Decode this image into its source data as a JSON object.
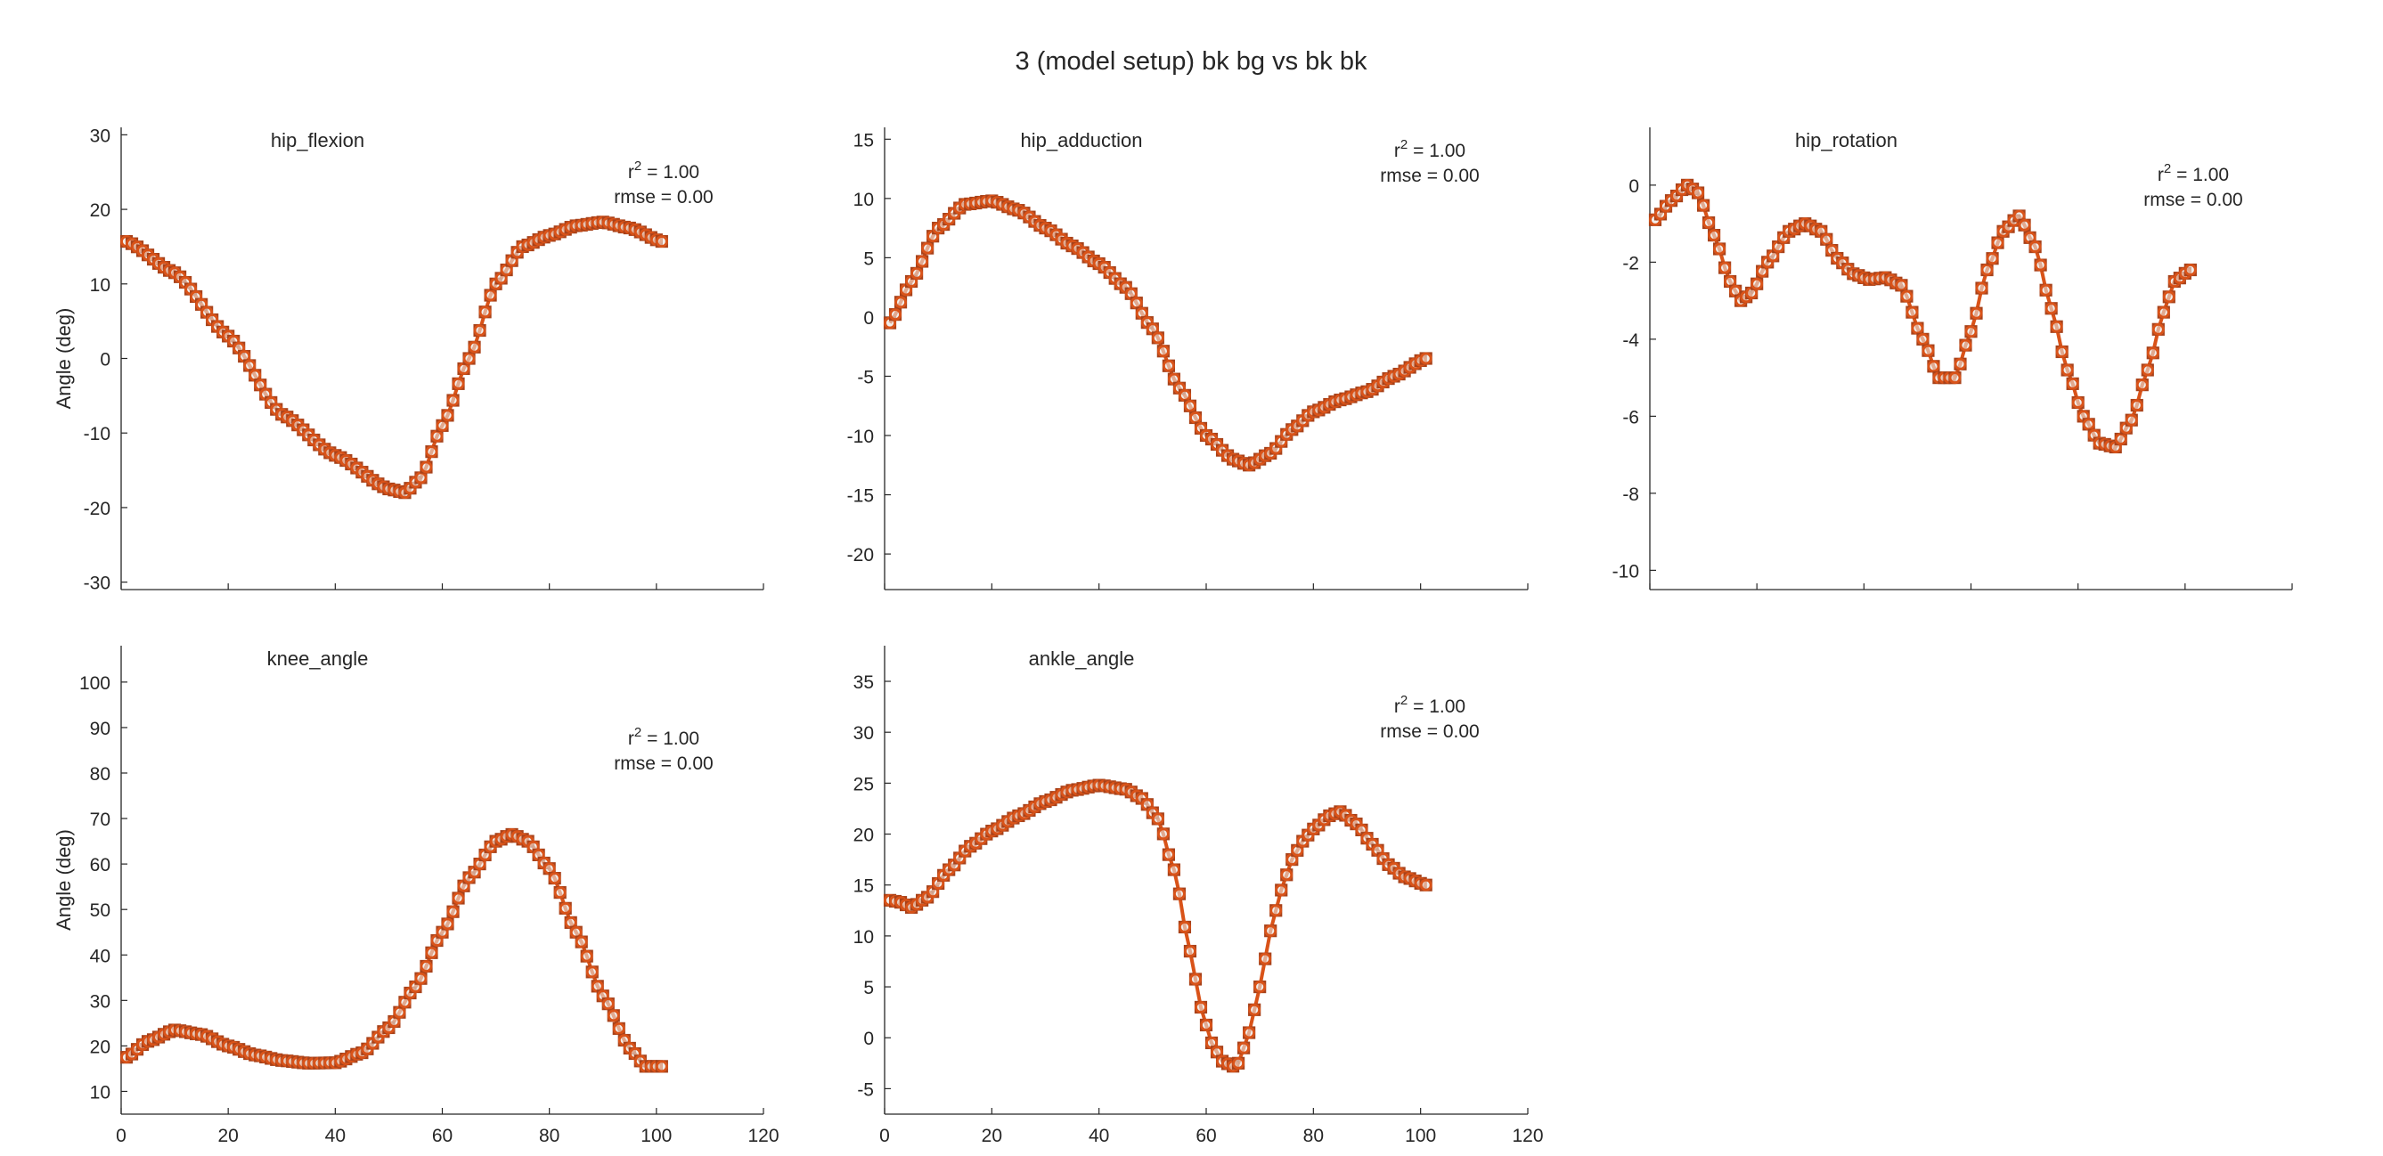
{
  "figure": {
    "title": "3 (model setup) bk bg vs bk bk"
  },
  "colors": {
    "line": "#D95319",
    "marker_edge": "#A8421A",
    "marker_face": "#E8E2DE",
    "axis": "#262626"
  },
  "chart_data": [
    {
      "type": "line",
      "name": "hip_flexion",
      "title": "hip_flexion",
      "ylabel": "Angle (deg)",
      "xlim": [
        0,
        120
      ],
      "ylim": [
        -31,
        31
      ],
      "yticks": [
        -30,
        -20,
        -10,
        0,
        10,
        20,
        30
      ],
      "xticks": [
        0,
        20,
        40,
        60,
        80,
        100,
        120
      ],
      "show_x_tick_labels": false,
      "stats": {
        "r2_label": "r",
        "r2_sup": "2",
        "r2_value": " = 1.00",
        "rmse": "rmse = 0.00"
      },
      "keypoints": [
        [
          1,
          15.7
        ],
        [
          10,
          11.5
        ],
        [
          20,
          3
        ],
        [
          30,
          -7.5
        ],
        [
          40,
          -13
        ],
        [
          50,
          -17.5
        ],
        [
          53,
          -18
        ],
        [
          56,
          -16
        ],
        [
          60,
          -9
        ],
        [
          65,
          0
        ],
        [
          70,
          10
        ],
        [
          75,
          15
        ],
        [
          80,
          16.5
        ],
        [
          85,
          17.8
        ],
        [
          90,
          18.3
        ],
        [
          95,
          17.5
        ],
        [
          101,
          15.7
        ]
      ]
    },
    {
      "type": "line",
      "name": "hip_adduction",
      "title": "hip_adduction",
      "ylabel": "",
      "xlim": [
        0,
        120
      ],
      "ylim": [
        -23,
        16
      ],
      "yticks": [
        -20,
        -15,
        -10,
        -5,
        0,
        5,
        10,
        15
      ],
      "xticks": [
        0,
        20,
        40,
        60,
        80,
        100,
        120
      ],
      "show_x_tick_labels": false,
      "stats": {
        "r2_label": "r",
        "r2_sup": "2",
        "r2_value": " = 1.00",
        "rmse": "rmse = 0.00"
      },
      "keypoints": [
        [
          1,
          -0.5
        ],
        [
          5,
          3
        ],
        [
          10,
          7.5
        ],
        [
          15,
          9.5
        ],
        [
          20,
          9.8
        ],
        [
          25,
          9
        ],
        [
          30,
          7.5
        ],
        [
          35,
          6
        ],
        [
          40,
          4.5
        ],
        [
          45,
          2.5
        ],
        [
          50,
          -1
        ],
        [
          55,
          -6
        ],
        [
          60,
          -10
        ],
        [
          65,
          -12
        ],
        [
          68,
          -12.5
        ],
        [
          72,
          -11.5
        ],
        [
          76,
          -9.5
        ],
        [
          80,
          -8
        ],
        [
          85,
          -7
        ],
        [
          90,
          -6.3
        ],
        [
          95,
          -5
        ],
        [
          101,
          -3.5
        ]
      ]
    },
    {
      "type": "line",
      "name": "hip_rotation",
      "title": "hip_rotation",
      "ylabel": "",
      "xlim": [
        0,
        120
      ],
      "ylim": [
        -10.5,
        1.5
      ],
      "yticks": [
        -10,
        -8,
        -6,
        -4,
        -2,
        0
      ],
      "xticks": [
        0,
        20,
        40,
        60,
        80,
        100,
        120
      ],
      "show_x_tick_labels": false,
      "stats": {
        "r2_label": "r",
        "r2_sup": "2",
        "r2_value": " = 1.00",
        "rmse": "rmse = 0.00"
      },
      "keypoints": [
        [
          1,
          -0.9
        ],
        [
          4,
          -0.4
        ],
        [
          7,
          0
        ],
        [
          9,
          -0.2
        ],
        [
          12,
          -1.3
        ],
        [
          15,
          -2.5
        ],
        [
          17,
          -3
        ],
        [
          19,
          -2.8
        ],
        [
          22,
          -2
        ],
        [
          26,
          -1.2
        ],
        [
          29,
          -1
        ],
        [
          32,
          -1.2
        ],
        [
          35,
          -1.9
        ],
        [
          38,
          -2.3
        ],
        [
          41,
          -2.45
        ],
        [
          44,
          -2.4
        ],
        [
          47,
          -2.6
        ],
        [
          51,
          -4
        ],
        [
          54,
          -5
        ],
        [
          57,
          -5
        ],
        [
          60,
          -3.8
        ],
        [
          63,
          -2.2
        ],
        [
          66,
          -1.2
        ],
        [
          69,
          -0.8
        ],
        [
          72,
          -1.6
        ],
        [
          75,
          -3.2
        ],
        [
          78,
          -4.8
        ],
        [
          81,
          -6
        ],
        [
          84,
          -6.7
        ],
        [
          87,
          -6.8
        ],
        [
          90,
          -6.1
        ],
        [
          93,
          -4.8
        ],
        [
          96,
          -3.3
        ],
        [
          98,
          -2.5
        ],
        [
          101,
          -2.2
        ]
      ]
    },
    {
      "type": "line",
      "name": "knee_angle",
      "title": "knee_angle",
      "ylabel": "Angle (deg)",
      "xlim": [
        0,
        120
      ],
      "ylim": [
        5,
        108
      ],
      "yticks": [
        10,
        20,
        30,
        40,
        50,
        60,
        70,
        80,
        90,
        100
      ],
      "xticks": [
        0,
        20,
        40,
        60,
        80,
        100,
        120
      ],
      "show_x_tick_labels": true,
      "stats": {
        "r2_label": "r",
        "r2_sup": "2",
        "r2_value": " = 1.00",
        "rmse": "rmse = 0.00"
      },
      "keypoints": [
        [
          1,
          17.5
        ],
        [
          5,
          21
        ],
        [
          10,
          23.5
        ],
        [
          15,
          22.5
        ],
        [
          20,
          20
        ],
        [
          25,
          18
        ],
        [
          30,
          16.8
        ],
        [
          35,
          16.2
        ],
        [
          40,
          16.3
        ],
        [
          45,
          18.5
        ],
        [
          50,
          24
        ],
        [
          55,
          33
        ],
        [
          60,
          45
        ],
        [
          65,
          57
        ],
        [
          70,
          65
        ],
        [
          73,
          66.5
        ],
        [
          76,
          65
        ],
        [
          80,
          59
        ],
        [
          85,
          45
        ],
        [
          90,
          31
        ],
        [
          95,
          19.5
        ],
        [
          98,
          15.5
        ],
        [
          101,
          15.5
        ]
      ]
    },
    {
      "type": "line",
      "name": "ankle_angle",
      "title": "ankle_angle",
      "ylabel": "",
      "xlim": [
        0,
        120
      ],
      "ylim": [
        -7.5,
        38.5
      ],
      "yticks": [
        -5,
        0,
        5,
        10,
        15,
        20,
        25,
        30,
        35
      ],
      "xticks": [
        0,
        20,
        40,
        60,
        80,
        100,
        120
      ],
      "show_x_tick_labels": true,
      "stats": {
        "r2_label": "r",
        "r2_sup": "2",
        "r2_value": " = 1.00",
        "rmse": "rmse = 0.00"
      },
      "keypoints": [
        [
          1,
          13.5
        ],
        [
          3,
          13.3
        ],
        [
          5,
          12.8
        ],
        [
          8,
          13.8
        ],
        [
          12,
          16.5
        ],
        [
          16,
          18.8
        ],
        [
          20,
          20.3
        ],
        [
          25,
          21.8
        ],
        [
          30,
          23.2
        ],
        [
          35,
          24.3
        ],
        [
          40,
          24.8
        ],
        [
          45,
          24.4
        ],
        [
          48,
          23.5
        ],
        [
          51,
          21.5
        ],
        [
          54,
          16.5
        ],
        [
          57,
          8.5
        ],
        [
          59,
          3
        ],
        [
          61,
          -0.5
        ],
        [
          63,
          -2.3
        ],
        [
          65,
          -2.8
        ],
        [
          66,
          -2.5
        ],
        [
          68,
          0.5
        ],
        [
          70,
          5
        ],
        [
          72,
          10.5
        ],
        [
          74,
          14.5
        ],
        [
          76,
          17.5
        ],
        [
          78,
          19.3
        ],
        [
          80,
          20.5
        ],
        [
          83,
          21.8
        ],
        [
          85,
          22.2
        ],
        [
          88,
          21
        ],
        [
          91,
          19
        ],
        [
          94,
          17
        ],
        [
          97,
          15.8
        ],
        [
          101,
          15
        ]
      ]
    }
  ]
}
